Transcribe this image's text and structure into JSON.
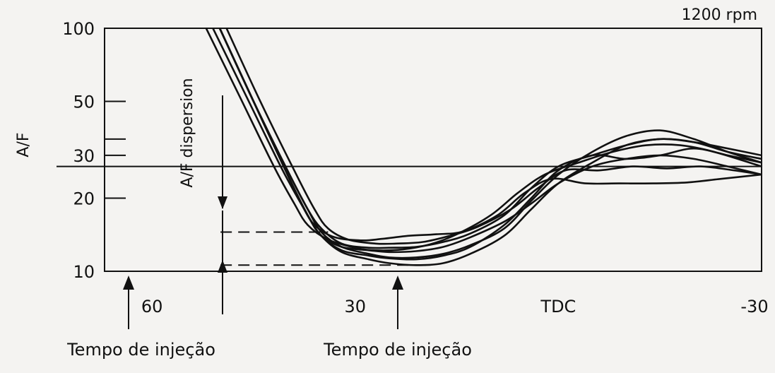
{
  "chart_data": {
    "type": "line",
    "title": "",
    "condition_label": "1200 rpm",
    "ylabel": "A/F",
    "xlabel": "",
    "y_scale": "log",
    "ylim": [
      10,
      100
    ],
    "y_ticks": [
      {
        "value": 100,
        "label": "100"
      },
      {
        "value": 50,
        "label": "50"
      },
      {
        "value": 30,
        "label": "30"
      },
      {
        "value": 20,
        "label": "20"
      },
      {
        "value": 10,
        "label": "10"
      }
    ],
    "reference_line": {
      "y": 27
    },
    "x_reversed": true,
    "xlim": [
      67,
      -30
    ],
    "x_ticks": [
      {
        "value": 60,
        "label": "60"
      },
      {
        "value": 30,
        "label": "30"
      },
      {
        "value": 0,
        "label": "TDC"
      },
      {
        "value": -30,
        "label": "-30"
      }
    ],
    "dispersion": {
      "label": "A/F dispersion",
      "upper": 14.5,
      "lower": 10.6,
      "x_start": 48,
      "x_end_upper": 34,
      "x_end_lower": 19
    },
    "annotations": [
      {
        "label": "Tempo de injeção",
        "x": 61
      },
      {
        "label": "Tempo de injeção",
        "x": 19
      }
    ],
    "series": [
      {
        "x": [
          50,
          45,
          40,
          37,
          35,
          32,
          28,
          25,
          21,
          17,
          13,
          8,
          4,
          0,
          -5,
          -10,
          -15,
          -20,
          -25,
          -30
        ],
        "y": [
          100,
          50,
          26,
          18,
          15,
          13,
          12.5,
          12.5,
          12.6,
          13.2,
          14.3,
          17,
          22,
          27,
          30,
          33,
          35,
          34,
          31,
          29
        ]
      },
      {
        "x": [
          50,
          45,
          40,
          37,
          35,
          32,
          28,
          25,
          21,
          17,
          13,
          8,
          4,
          0,
          -5,
          -10,
          -15,
          -20,
          -25,
          -30
        ],
        "y": [
          100,
          50,
          26,
          18,
          14.5,
          12.6,
          11.8,
          11.4,
          11.4,
          11.8,
          12.8,
          15,
          19.5,
          25,
          31,
          36,
          38,
          35,
          31,
          28
        ]
      },
      {
        "x": [
          49,
          44,
          39,
          36,
          34,
          31,
          27,
          24,
          20,
          16,
          12,
          7,
          3,
          -1,
          -6,
          -11,
          -16,
          -21,
          -26,
          -30
        ],
        "y": [
          100,
          50,
          26,
          18,
          15,
          13.5,
          13,
          13,
          13.2,
          14,
          15.2,
          18,
          22,
          26,
          26,
          27,
          26.5,
          27,
          26,
          25
        ]
      },
      {
        "x": [
          50,
          45,
          40,
          37,
          35,
          32,
          28,
          25,
          21,
          17,
          13,
          8,
          4,
          0,
          -5,
          -10,
          -15,
          -20,
          -25,
          -30
        ],
        "y": [
          100,
          50,
          25,
          17,
          14,
          12,
          11.2,
          10.8,
          10.6,
          10.8,
          11.8,
          14,
          18,
          23,
          28,
          33,
          35,
          34,
          32,
          30
        ]
      },
      {
        "x": [
          51,
          46,
          41,
          38,
          36,
          33,
          29,
          26,
          22,
          18,
          14,
          9,
          5,
          1,
          -4,
          -9,
          -14,
          -19,
          -24,
          -30
        ],
        "y": [
          100,
          52,
          27,
          19,
          15.5,
          13.8,
          13.4,
          13.6,
          14,
          14.2,
          14.6,
          17,
          21,
          24,
          23,
          23,
          23,
          23.2,
          24,
          25
        ]
      },
      {
        "x": [
          50,
          45,
          40,
          37,
          35,
          32,
          28,
          25,
          21,
          17,
          13,
          8,
          4,
          0,
          -5,
          -10,
          -15,
          -20,
          -25,
          -30
        ],
        "y": [
          100,
          50,
          25,
          17,
          14,
          12.2,
          11.6,
          11.3,
          11.2,
          11.6,
          12.6,
          15.5,
          20,
          26,
          30,
          29,
          30,
          32,
          30,
          28
        ]
      },
      {
        "x": [
          52,
          47,
          42,
          39,
          37,
          34,
          30,
          27,
          23,
          19,
          15,
          10,
          6,
          2,
          -3,
          -8,
          -13,
          -18,
          -23,
          -30
        ],
        "y": [
          100,
          52,
          27,
          19,
          15.5,
          13.5,
          12.5,
          12.2,
          12.3,
          12.9,
          14.2,
          17,
          21,
          25,
          28,
          31,
          33,
          33,
          31,
          27
        ]
      },
      {
        "x": [
          50,
          45,
          40,
          37,
          35,
          32,
          28,
          25,
          21,
          17,
          13,
          8,
          4,
          0,
          -5,
          -10,
          -15,
          -20,
          -25,
          -30
        ],
        "y": [
          100,
          50,
          25,
          17,
          14,
          12.6,
          12.2,
          12,
          12.1,
          12.6,
          13.8,
          16,
          19,
          23,
          27,
          29,
          30,
          29,
          27,
          25
        ]
      }
    ]
  }
}
